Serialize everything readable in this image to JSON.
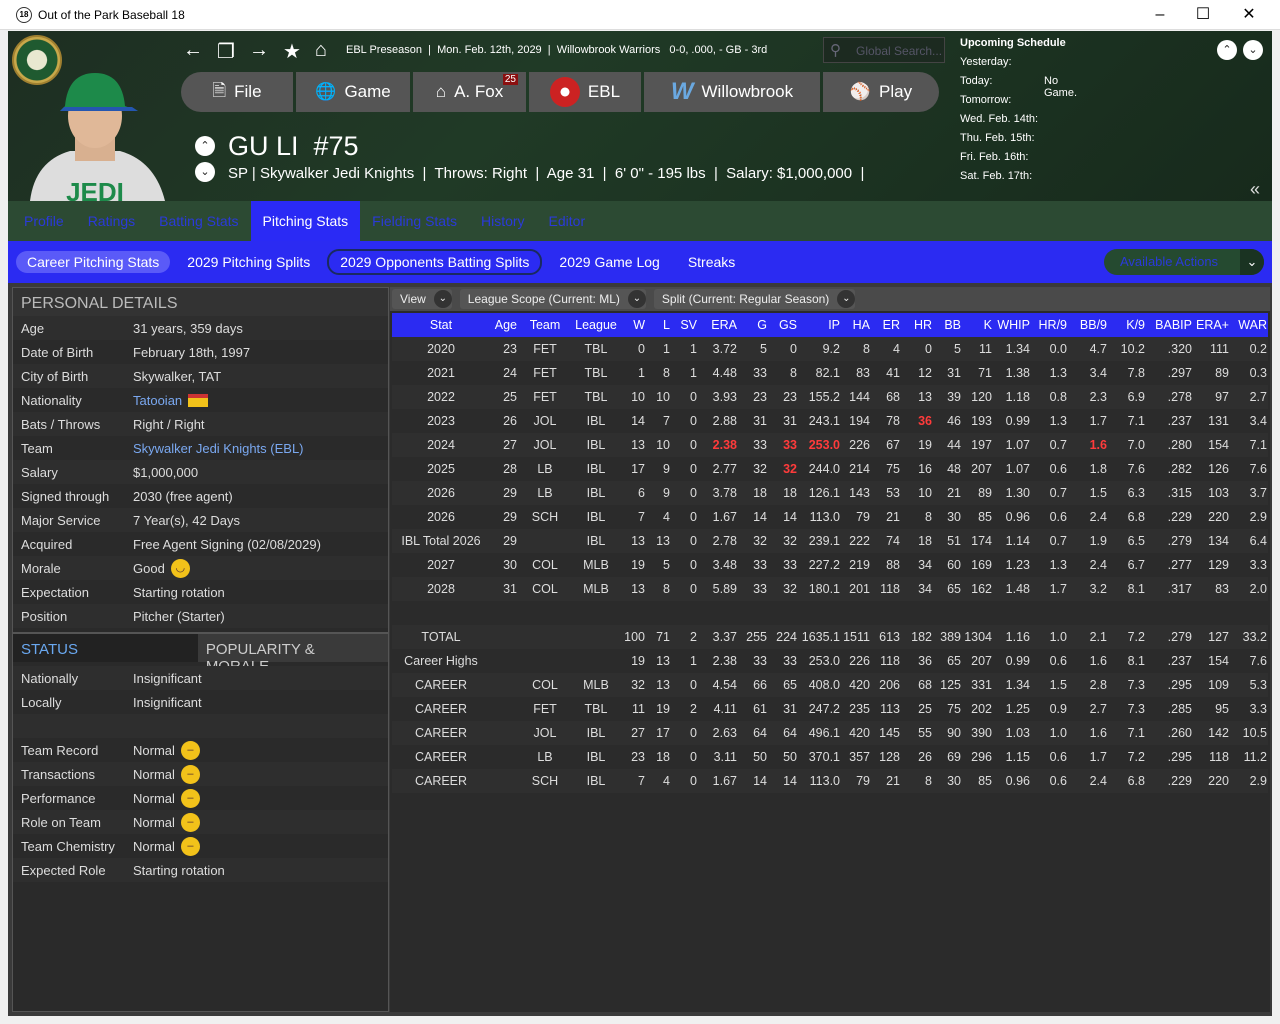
{
  "window": {
    "title": "Out of the Park Baseball 18",
    "app_icon": "18"
  },
  "header": {
    "breadcrumb": "EBL Preseason  |  Mon. Feb. 12th, 2029  |  Willowbrook Warriors   0-0, .000, - GB - 3rd",
    "search_placeholder": "Global Search...",
    "menu": [
      {
        "label": "File",
        "icon": "file-icon"
      },
      {
        "label": "Game",
        "icon": "globe-icon"
      },
      {
        "label": "A. Fox",
        "icon": "home-icon",
        "badge": "25"
      },
      {
        "label": "EBL",
        "icon": "league-logo-icon"
      },
      {
        "label": "Willowbrook",
        "icon": "team-logo-icon"
      },
      {
        "label": "Play",
        "icon": "baseball-icon"
      }
    ],
    "player_name": "GU LI  #75",
    "player_info": "SP | Skywalker Jedi Knights  |  Throws: Right  |  Age 31  |  6' 0\" - 195 lbs  |  Salary: $1,000,000  |",
    "schedule": {
      "title": "Upcoming Schedule",
      "rows": [
        {
          "d": "Yesterday:",
          "v": ""
        },
        {
          "d": "Today:",
          "v": "No Game."
        },
        {
          "d": "Tomorrow:",
          "v": ""
        },
        {
          "d": "Wed. Feb. 14th:",
          "v": ""
        },
        {
          "d": "Thu. Feb. 15th:",
          "v": ""
        },
        {
          "d": "Fri. Feb. 16th:",
          "v": ""
        },
        {
          "d": "Sat. Feb. 17th:",
          "v": ""
        }
      ]
    }
  },
  "tabs": [
    "Profile",
    "Ratings",
    "Batting Stats",
    "Pitching Stats",
    "Fielding Stats",
    "History",
    "Editor"
  ],
  "active_tab": "Pitching Stats",
  "subtabs": [
    "Career Pitching Stats",
    "2029 Pitching Splits",
    "2029 Opponents Batting Splits",
    "2029 Game Log",
    "Streaks"
  ],
  "available_actions": "Available Actions",
  "personal": {
    "title": "PERSONAL DETAILS",
    "rows": [
      {
        "l": "Age",
        "v": "31 years, 359 days"
      },
      {
        "l": "Date of Birth",
        "v": "February 18th, 1997"
      },
      {
        "l": "City of Birth",
        "v": "Skywalker, TAT"
      },
      {
        "l": "Nationality",
        "v": "Tatooian",
        "link": true,
        "flag": true
      },
      {
        "l": "Bats / Throws",
        "v": "Right / Right"
      },
      {
        "l": "Team",
        "v": "Skywalker Jedi Knights (EBL)",
        "link": true
      },
      {
        "l": "Salary",
        "v": "$1,000,000"
      },
      {
        "l": "Signed through",
        "v": "2030 (free agent)"
      },
      {
        "l": "Major Service",
        "v": "7 Year(s), 42 Days"
      },
      {
        "l": "Acquired",
        "v": "Free Agent Signing (02/08/2029)"
      },
      {
        "l": "Morale",
        "v": "Good",
        "mood": "happy"
      },
      {
        "l": "Expectation",
        "v": "Starting rotation"
      },
      {
        "l": "Position",
        "v": "Pitcher (Starter)"
      }
    ]
  },
  "status": {
    "tab1": "STATUS",
    "tab2": "POPULARITY & MORALE",
    "rows": [
      {
        "l": "Nationally",
        "v": "Insignificant"
      },
      {
        "l": "Locally",
        "v": "Insignificant"
      },
      {
        "l": "",
        "v": ""
      },
      {
        "l": "Team Record",
        "v": "Normal",
        "mood": "neutral"
      },
      {
        "l": "Transactions",
        "v": "Normal",
        "mood": "neutral"
      },
      {
        "l": "Performance",
        "v": "Normal",
        "mood": "neutral"
      },
      {
        "l": "Role on Team",
        "v": "Normal",
        "mood": "neutral"
      },
      {
        "l": "Team Chemistry",
        "v": "Normal",
        "mood": "neutral"
      },
      {
        "l": "Expected Role",
        "v": "Starting rotation"
      }
    ]
  },
  "filters": [
    {
      "label": "View"
    },
    {
      "label": "League Scope  (Current: ML)"
    },
    {
      "label": "Split  (Current: Regular Season)"
    }
  ],
  "stats": {
    "columns": [
      "Stat",
      "Age",
      "Team",
      "League",
      "W",
      "L",
      "SV",
      "ERA",
      "G",
      "GS",
      "IP",
      "HA",
      "ER",
      "HR",
      "BB",
      "K",
      "WHIP",
      "HR/9",
      "BB/9",
      "K/9",
      "BABIP",
      "ERA+",
      "WAR"
    ],
    "rows": [
      {
        "cells": [
          "2020",
          "23",
          "FET",
          "TBL",
          "0",
          "1",
          "1",
          "3.72",
          "5",
          "0",
          "9.2",
          "8",
          "4",
          "0",
          "5",
          "11",
          "1.34",
          "0.0",
          "4.7",
          "10.2",
          ".320",
          "111",
          "0.2"
        ]
      },
      {
        "cells": [
          "2021",
          "24",
          "FET",
          "TBL",
          "1",
          "8",
          "1",
          "4.48",
          "33",
          "8",
          "82.1",
          "83",
          "41",
          "12",
          "31",
          "71",
          "1.38",
          "1.3",
          "3.4",
          "7.8",
          ".297",
          "89",
          "0.3"
        ]
      },
      {
        "cells": [
          "2022",
          "25",
          "FET",
          "TBL",
          "10",
          "10",
          "0",
          "3.93",
          "23",
          "23",
          "155.2",
          "144",
          "68",
          "13",
          "39",
          "120",
          "1.18",
          "0.8",
          "2.3",
          "6.9",
          ".278",
          "97",
          "2.7"
        ]
      },
      {
        "cells": [
          "2023",
          "26",
          "JOL",
          "IBL",
          "14",
          "7",
          "0",
          "2.88",
          "31",
          "31",
          "243.1",
          "194",
          "78",
          "36",
          "46",
          "193",
          "0.99",
          "1.3",
          "1.7",
          "7.1",
          ".237",
          "131",
          "3.4"
        ],
        "highlight": [
          "HR"
        ]
      },
      {
        "cells": [
          "2024",
          "27",
          "JOL",
          "IBL",
          "13",
          "10",
          "0",
          "2.38",
          "33",
          "33",
          "253.0",
          "226",
          "67",
          "19",
          "44",
          "197",
          "1.07",
          "0.7",
          "1.6",
          "7.0",
          ".280",
          "154",
          "7.1"
        ],
        "highlight": [
          "ERA",
          "GS",
          "IP",
          "BB/9"
        ]
      },
      {
        "cells": [
          "2025",
          "28",
          "LB",
          "IBL",
          "17",
          "9",
          "0",
          "2.77",
          "32",
          "32",
          "244.0",
          "214",
          "75",
          "16",
          "48",
          "207",
          "1.07",
          "0.6",
          "1.8",
          "7.6",
          ".282",
          "126",
          "7.6"
        ],
        "highlight": [
          "GS"
        ]
      },
      {
        "cells": [
          "2026",
          "29",
          "LB",
          "IBL",
          "6",
          "9",
          "0",
          "3.78",
          "18",
          "18",
          "126.1",
          "143",
          "53",
          "10",
          "21",
          "89",
          "1.30",
          "0.7",
          "1.5",
          "6.3",
          ".315",
          "103",
          "3.7"
        ]
      },
      {
        "cells": [
          "2026",
          "29",
          "SCH",
          "IBL",
          "7",
          "4",
          "0",
          "1.67",
          "14",
          "14",
          "113.0",
          "79",
          "21",
          "8",
          "30",
          "85",
          "0.96",
          "0.6",
          "2.4",
          "6.8",
          ".229",
          "220",
          "2.9"
        ]
      },
      {
        "cells": [
          "IBL Total 2026",
          "29",
          "",
          "IBL",
          "13",
          "13",
          "0",
          "2.78",
          "32",
          "32",
          "239.1",
          "222",
          "74",
          "18",
          "51",
          "174",
          "1.14",
          "0.7",
          "1.9",
          "6.5",
          ".279",
          "134",
          "6.4"
        ]
      },
      {
        "cells": [
          "2027",
          "30",
          "COL",
          "MLB",
          "19",
          "5",
          "0",
          "3.48",
          "33",
          "33",
          "227.2",
          "219",
          "88",
          "34",
          "60",
          "169",
          "1.23",
          "1.3",
          "2.4",
          "6.7",
          ".277",
          "129",
          "3.3"
        ]
      },
      {
        "cells": [
          "2028",
          "31",
          "COL",
          "MLB",
          "13",
          "8",
          "0",
          "5.89",
          "33",
          "32",
          "180.1",
          "201",
          "118",
          "34",
          "65",
          "162",
          "1.48",
          "1.7",
          "3.2",
          "8.1",
          ".317",
          "83",
          "2.0"
        ]
      },
      {
        "cells": [
          "",
          "",
          "",
          "",
          "",
          "",
          "",
          "",
          "",
          "",
          "",
          "",
          "",
          "",
          "",
          "",
          "",
          "",
          "",
          "",
          "",
          "",
          ""
        ]
      },
      {
        "cells": [
          "TOTAL",
          "",
          "",
          "",
          "100",
          "71",
          "2",
          "3.37",
          "255",
          "224",
          "1635.1",
          "1511",
          "613",
          "182",
          "389",
          "1304",
          "1.16",
          "1.0",
          "2.1",
          "7.2",
          ".279",
          "127",
          "33.2"
        ]
      },
      {
        "cells": [
          "Career Highs",
          "",
          "",
          "",
          "19",
          "13",
          "1",
          "2.38",
          "33",
          "33",
          "253.0",
          "226",
          "118",
          "36",
          "65",
          "207",
          "0.99",
          "0.6",
          "1.6",
          "8.1",
          ".237",
          "154",
          "7.6"
        ]
      },
      {
        "cells": [
          "CAREER",
          "",
          "COL",
          "MLB",
          "32",
          "13",
          "0",
          "4.54",
          "66",
          "65",
          "408.0",
          "420",
          "206",
          "68",
          "125",
          "331",
          "1.34",
          "1.5",
          "2.8",
          "7.3",
          ".295",
          "109",
          "5.3"
        ]
      },
      {
        "cells": [
          "CAREER",
          "",
          "FET",
          "TBL",
          "11",
          "19",
          "2",
          "4.11",
          "61",
          "31",
          "247.2",
          "235",
          "113",
          "25",
          "75",
          "202",
          "1.25",
          "0.9",
          "2.7",
          "7.3",
          ".285",
          "95",
          "3.3"
        ]
      },
      {
        "cells": [
          "CAREER",
          "",
          "JOL",
          "IBL",
          "27",
          "17",
          "0",
          "2.63",
          "64",
          "64",
          "496.1",
          "420",
          "145",
          "55",
          "90",
          "390",
          "1.03",
          "1.0",
          "1.6",
          "7.1",
          ".260",
          "142",
          "10.5"
        ]
      },
      {
        "cells": [
          "CAREER",
          "",
          "LB",
          "IBL",
          "23",
          "18",
          "0",
          "3.11",
          "50",
          "50",
          "370.1",
          "357",
          "128",
          "26",
          "69",
          "296",
          "1.15",
          "0.6",
          "1.7",
          "7.2",
          ".295",
          "118",
          "11.2"
        ]
      },
      {
        "cells": [
          "CAREER",
          "",
          "SCH",
          "IBL",
          "7",
          "4",
          "0",
          "1.67",
          "14",
          "14",
          "113.0",
          "79",
          "21",
          "8",
          "30",
          "85",
          "0.96",
          "0.6",
          "2.4",
          "6.8",
          ".229",
          "220",
          "2.9"
        ]
      }
    ]
  },
  "colors": {
    "accent_blue": "#2b2bf2",
    "header_green": "#203a26",
    "highlight_red": "#ff3b3b",
    "link": "#7aa8f0"
  }
}
